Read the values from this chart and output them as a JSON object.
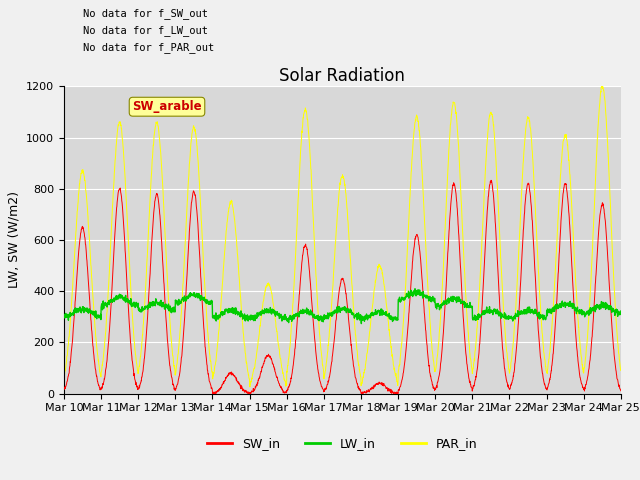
{
  "title": "Solar Radiation",
  "ylabel": "LW, SW (W/m2)",
  "ylim": [
    0,
    1200
  ],
  "xtick_labels": [
    "Mar 10",
    "Mar 11",
    "Mar 12",
    "Mar 13",
    "Mar 14",
    "Mar 15",
    "Mar 16",
    "Mar 17",
    "Mar 18",
    "Mar 19",
    "Mar 20",
    "Mar 21",
    "Mar 22",
    "Mar 23",
    "Mar 24",
    "Mar 25"
  ],
  "annotations": [
    "No data for f_SW_out",
    "No data for f_LW_out",
    "No data for f_PAR_out"
  ],
  "legend_box_label": "SW_arable",
  "legend_items": [
    {
      "label": "SW_in",
      "color": "#ff0000"
    },
    {
      "label": "LW_in",
      "color": "#00cc00"
    },
    {
      "label": "PAR_in",
      "color": "#ffff00"
    }
  ],
  "fig_facecolor": "#f0f0f0",
  "axes_facecolor": "#d8d8d8",
  "grid_color": "#ffffff",
  "title_fontsize": 12,
  "axis_fontsize": 9,
  "tick_fontsize": 8,
  "peaks_sw": [
    650,
    800,
    780,
    790,
    80,
    150,
    580,
    450,
    40,
    620,
    820,
    830,
    820,
    820,
    740
  ],
  "peaks_par": [
    870,
    1060,
    1060,
    1040,
    750,
    430,
    1110,
    850,
    500,
    1080,
    1140,
    1100,
    1080,
    1010,
    1200
  ],
  "lw_base": 320,
  "lw_daily": [
    315,
    360,
    340,
    370,
    310,
    310,
    305,
    315,
    305,
    380,
    355,
    310,
    310,
    335,
    330
  ]
}
